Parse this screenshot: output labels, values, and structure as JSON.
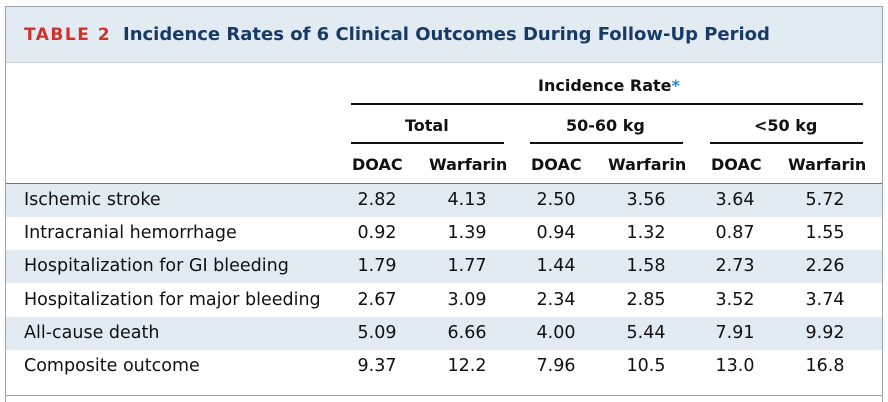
{
  "table": {
    "label": "TABLE 2",
    "title": "Incidence Rates of 6 Clinical Outcomes During Follow-Up Period",
    "super_header": "Incidence Rate",
    "super_header_mark": "*",
    "groups": [
      "Total",
      "50-60 kg",
      "<50 kg"
    ],
    "columns": [
      "DOAC",
      "Warfarin",
      "DOAC",
      "Warfarin",
      "DOAC",
      "Warfarin"
    ],
    "rows": [
      {
        "label": "Ischemic stroke",
        "values": [
          "2.82",
          "4.13",
          "2.50",
          "3.56",
          "3.64",
          "5.72"
        ]
      },
      {
        "label": "Intracranial hemorrhage",
        "values": [
          "0.92",
          "1.39",
          "0.94",
          "1.32",
          "0.87",
          "1.55"
        ]
      },
      {
        "label": "Hospitalization for GI bleeding",
        "values": [
          "1.79",
          "1.77",
          "1.44",
          "1.58",
          "2.73",
          "2.26"
        ]
      },
      {
        "label": "Hospitalization for major bleeding",
        "values": [
          "2.67",
          "3.09",
          "2.34",
          "2.85",
          "3.52",
          "3.74"
        ]
      },
      {
        "label": "All-cause death",
        "values": [
          "5.09",
          "6.66",
          "4.00",
          "5.44",
          "7.91",
          "9.92"
        ]
      },
      {
        "label": "Composite outcome",
        "values": [
          "9.37",
          "12.2",
          "7.96",
          "10.5",
          "13.0",
          "16.8"
        ]
      }
    ]
  }
}
